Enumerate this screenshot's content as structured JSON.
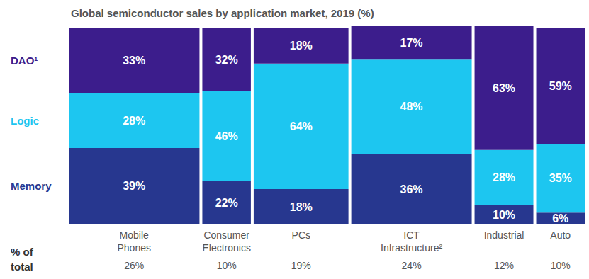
{
  "chart_data": {
    "type": "marimekko",
    "title": "Global semiconductor sales by application market, 2019 (%)",
    "categories": [
      "Mobile Phones",
      "Consumer Electronics",
      "PCs",
      "ICT Infrastructure²",
      "Industrial",
      "Auto"
    ],
    "width_title": "% of total",
    "widths": [
      26,
      10,
      19,
      24,
      12,
      10
    ],
    "width_labels": [
      "26%",
      "10%",
      "19%",
      "24%",
      "12%",
      "10%"
    ],
    "series": [
      {
        "name": "Memory",
        "color": "#27378f",
        "values": [
          39,
          22,
          18,
          36,
          10,
          6
        ],
        "value_labels": [
          "39%",
          "22%",
          "18%",
          "36%",
          "10%",
          "6%"
        ]
      },
      {
        "name": "Logic",
        "color": "#1dc6f0",
        "values": [
          28,
          46,
          64,
          48,
          28,
          35
        ],
        "value_labels": [
          "28%",
          "46%",
          "64%",
          "48%",
          "28%",
          "35%"
        ]
      },
      {
        "name": "DAO¹",
        "color": "#3c1d8c",
        "values": [
          33,
          32,
          18,
          17,
          63,
          59
        ],
        "value_labels": [
          "33%",
          "32%",
          "18%",
          "17%",
          "63%",
          "59%"
        ]
      }
    ],
    "xlim": [
      0,
      101
    ],
    "ylim": [
      0,
      101
    ],
    "stacked": true,
    "data_labels": true,
    "tick_labels": false,
    "grid": false
  }
}
